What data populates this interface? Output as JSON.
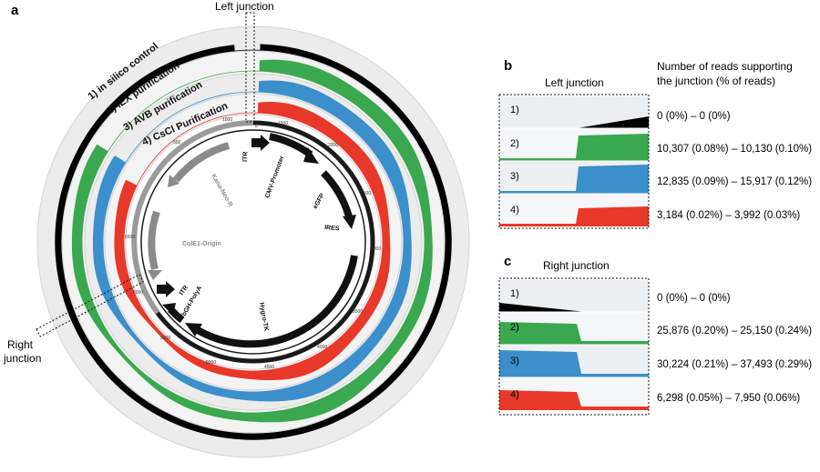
{
  "panel_letters": {
    "a": "a",
    "b": "b",
    "c": "c"
  },
  "circos": {
    "left_junction_label": "Left junction",
    "right_junction_label": [
      "Right",
      "junction"
    ],
    "tracks": [
      {
        "label": "1) in silico control",
        "color": "#000000"
      },
      {
        "label": "2) IEX purification",
        "color": "#3aa84e"
      },
      {
        "label": "3) AVB purification",
        "color": "#3b8fcb"
      },
      {
        "label": "4) CsCl Purification",
        "color": "#e8382a"
      }
    ],
    "ticks_inner": [
      "0",
      "500",
      "1000",
      "1500",
      "2000",
      "2500",
      "3000",
      "3500",
      "4000",
      "4500",
      "5000",
      "5500",
      "6000",
      "6500"
    ],
    "features": [
      "ITR",
      "CMV-Promoter",
      "eGFP",
      "IRES",
      "Hygro-TK",
      "bGH-PolyA",
      "ITR",
      "ColE1-Origin",
      "Kana-Neo-R"
    ]
  },
  "junction_panels": {
    "header": [
      "Number of reads supporting",
      "the junction (% of reads)"
    ],
    "left": {
      "title": "Left junction",
      "rows": [
        {
          "id": "1)",
          "color": "#000000",
          "counts": "0 (0%) – 0 (0%)"
        },
        {
          "id": "2)",
          "color": "#3aa84e",
          "counts": "10,307 (0.08%) – 10,130 (0.10%)"
        },
        {
          "id": "3)",
          "color": "#3b8fcb",
          "counts": "12,835 (0.09%) – 15,917 (0.12%)"
        },
        {
          "id": "4)",
          "color": "#e8382a",
          "counts": "3,184 (0.02%) – 3,992 (0.03%)"
        }
      ]
    },
    "right": {
      "title": "Right junction",
      "rows": [
        {
          "id": "1)",
          "color": "#000000",
          "counts": "0 (0%) – 0 (0%)"
        },
        {
          "id": "2)",
          "color": "#3aa84e",
          "counts": "25,876 (0.20%) – 25,150 (0.24%)"
        },
        {
          "id": "3)",
          "color": "#3b8fcb",
          "counts": "30,224 (0.21%) – 37,493 (0.29%)"
        },
        {
          "id": "4)",
          "color": "#e8382a",
          "counts": "6,298 (0.05%) – 7,950 (0.06%)"
        }
      ]
    }
  }
}
